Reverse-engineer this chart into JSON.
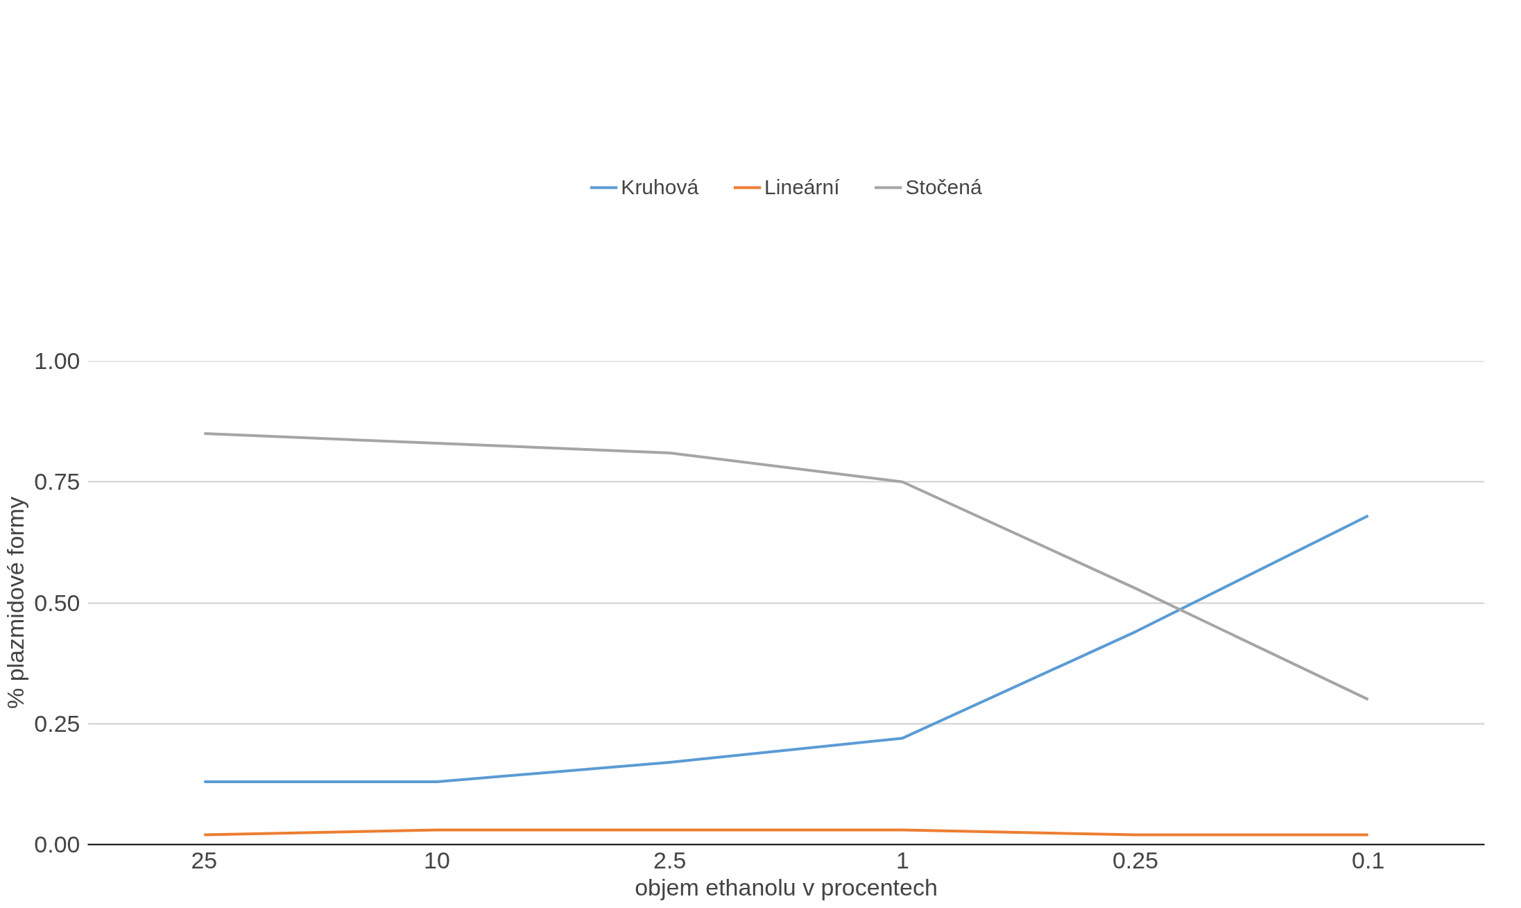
{
  "chart_data": {
    "type": "line",
    "xlabel": "objem ethanolu v procentech",
    "ylabel": "% plazmidové formy",
    "categories": [
      "25",
      "10",
      "2.5",
      "1",
      "0.25",
      "0.1"
    ],
    "series": [
      {
        "name": "Kruhová",
        "color": "#5b9bd5",
        "values": [
          0.13,
          0.13,
          0.17,
          0.22,
          0.44,
          0.68
        ]
      },
      {
        "name": "Lineární",
        "color": "#ed7d31",
        "values": [
          0.02,
          0.03,
          0.03,
          0.03,
          0.02,
          0.02
        ]
      },
      {
        "name": "Stočená",
        "color": "#a5a5a5",
        "values": [
          0.85,
          0.83,
          0.81,
          0.75,
          0.53,
          0.3
        ]
      }
    ],
    "ylim": [
      0,
      1
    ],
    "yticks": [
      {
        "value": 0,
        "label": "0.00"
      },
      {
        "value": 0.25,
        "label": "0.25"
      },
      {
        "value": 0.5,
        "label": "0.50"
      },
      {
        "value": 0.75,
        "label": "0.75"
      },
      {
        "value": 1,
        "label": "1.00"
      }
    ],
    "grid": "y",
    "legend": "top",
    "marker": "none",
    "line_style": "solid"
  }
}
